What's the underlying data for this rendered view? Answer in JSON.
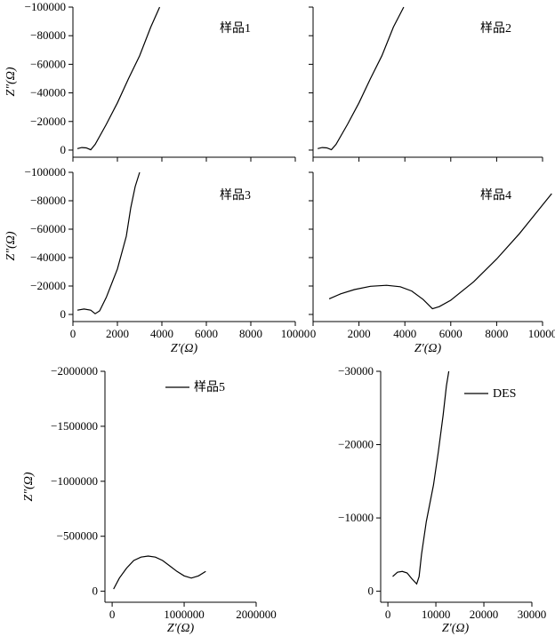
{
  "chart_data": [
    {
      "id": "p1",
      "type": "line",
      "annotation": "样品1",
      "xlim": [
        0,
        10000
      ],
      "ylim": [
        5000,
        -100000
      ],
      "x_ticks": [],
      "y_ticks": [
        {
          "v": -100000,
          "label": "−100000"
        },
        {
          "v": -80000,
          "label": "−80000"
        },
        {
          "v": -60000,
          "label": "−60000"
        },
        {
          "v": -40000,
          "label": "−40000"
        },
        {
          "v": -20000,
          "label": "−20000"
        },
        {
          "v": 0,
          "label": "0"
        }
      ],
      "xlabel": "",
      "ylabel": "Z″(Ω)",
      "series": [
        {
          "points": [
            [
              200,
              -1000
            ],
            [
              400,
              -1800
            ],
            [
              600,
              -1500
            ],
            [
              800,
              -200
            ],
            [
              1000,
              -4000
            ],
            [
              1500,
              -18000
            ],
            [
              2000,
              -33000
            ],
            [
              2500,
              -50000
            ],
            [
              3000,
              -66000
            ],
            [
              3500,
              -86000
            ],
            [
              3900,
              -100000
            ]
          ]
        }
      ]
    },
    {
      "id": "p2",
      "type": "line",
      "annotation": "样品2",
      "xlim": [
        0,
        10000
      ],
      "ylim": [
        5000,
        -100000
      ],
      "x_ticks": [],
      "y_ticks": [],
      "xlabel": "",
      "ylabel": "",
      "series": [
        {
          "points": [
            [
              200,
              -1000
            ],
            [
              400,
              -1800
            ],
            [
              600,
              -1500
            ],
            [
              800,
              -300
            ],
            [
              1000,
              -4000
            ],
            [
              1500,
              -18000
            ],
            [
              2000,
              -33000
            ],
            [
              2500,
              -50000
            ],
            [
              3000,
              -66000
            ],
            [
              3500,
              -86000
            ],
            [
              3950,
              -100000
            ]
          ]
        }
      ]
    },
    {
      "id": "p3",
      "type": "line",
      "annotation": "样品3",
      "xlim": [
        0,
        10000
      ],
      "ylim": [
        5000,
        -100000
      ],
      "x_ticks": [
        {
          "v": 0,
          "label": "0"
        },
        {
          "v": 2000,
          "label": "2000"
        },
        {
          "v": 4000,
          "label": "4000"
        },
        {
          "v": 6000,
          "label": "6000"
        },
        {
          "v": 8000,
          "label": "8000"
        },
        {
          "v": 10000,
          "label": "10000"
        }
      ],
      "y_ticks": [
        {
          "v": -100000,
          "label": "−100000"
        },
        {
          "v": -80000,
          "label": "−80000"
        },
        {
          "v": -60000,
          "label": "−60000"
        },
        {
          "v": -40000,
          "label": "−40000"
        },
        {
          "v": -20000,
          "label": "−20000"
        },
        {
          "v": 0,
          "label": "0"
        }
      ],
      "xlabel": "Z′(Ω)",
      "ylabel": "Z″(Ω)",
      "series": [
        {
          "points": [
            [
              200,
              -3000
            ],
            [
              500,
              -3800
            ],
            [
              800,
              -3000
            ],
            [
              1000,
              -500
            ],
            [
              1200,
              -2500
            ],
            [
              1500,
              -12000
            ],
            [
              2000,
              -32000
            ],
            [
              2400,
              -55000
            ],
            [
              2600,
              -75000
            ],
            [
              2800,
              -90000
            ],
            [
              3000,
              -100000
            ]
          ]
        }
      ]
    },
    {
      "id": "p4",
      "type": "line",
      "annotation": "样品4",
      "xlim": [
        0,
        10000
      ],
      "ylim": [
        5000,
        -100000
      ],
      "x_ticks": [
        {
          "v": 0,
          "label": "0"
        },
        {
          "v": 2000,
          "label": "2000"
        },
        {
          "v": 4000,
          "label": "4000"
        },
        {
          "v": 6000,
          "label": "6000"
        },
        {
          "v": 8000,
          "label": "8000"
        },
        {
          "v": 10000,
          "label": "10000"
        }
      ],
      "y_ticks": [],
      "xlabel": "Z′(Ω)",
      "ylabel": "",
      "series": [
        {
          "points": [
            [
              700,
              -11000
            ],
            [
              1200,
              -14500
            ],
            [
              1800,
              -17500
            ],
            [
              2500,
              -19800
            ],
            [
              3200,
              -20500
            ],
            [
              3800,
              -19500
            ],
            [
              4300,
              -16500
            ],
            [
              4800,
              -10500
            ],
            [
              5200,
              -4000
            ],
            [
              5500,
              -5500
            ],
            [
              6000,
              -10000
            ],
            [
              7000,
              -23000
            ],
            [
              8000,
              -39000
            ],
            [
              9000,
              -57000
            ],
            [
              10000,
              -77000
            ],
            [
              10400,
              -85000
            ]
          ]
        }
      ]
    },
    {
      "id": "p5",
      "type": "line",
      "annotation": "样品5",
      "xlim": [
        -100000,
        2000000
      ],
      "ylim": [
        100000,
        -2000000
      ],
      "x_ticks": [
        {
          "v": 0,
          "label": "0"
        },
        {
          "v": 1000000,
          "label": "1000000"
        },
        {
          "v": 2000000,
          "label": "2000000"
        }
      ],
      "y_ticks": [
        {
          "v": -2000000,
          "label": "−2000000"
        },
        {
          "v": -1500000,
          "label": "−1500000"
        },
        {
          "v": -1000000,
          "label": "−1000000"
        },
        {
          "v": -500000,
          "label": "−500000"
        },
        {
          "v": 0,
          "label": "0"
        }
      ],
      "xlabel": "Z′(Ω)",
      "ylabel": "Z″(Ω)",
      "series": [
        {
          "name": "样品5",
          "points": [
            [
              20000,
              -20000
            ],
            [
              100000,
              -120000
            ],
            [
              200000,
              -210000
            ],
            [
              300000,
              -280000
            ],
            [
              400000,
              -310000
            ],
            [
              500000,
              -320000
            ],
            [
              600000,
              -310000
            ],
            [
              700000,
              -280000
            ],
            [
              800000,
              -230000
            ],
            [
              900000,
              -180000
            ],
            [
              1000000,
              -140000
            ],
            [
              1100000,
              -120000
            ],
            [
              1200000,
              -140000
            ],
            [
              1300000,
              -180000
            ]
          ]
        }
      ]
    },
    {
      "id": "p6",
      "type": "line",
      "annotation": "",
      "xlim": [
        -1500,
        30000
      ],
      "ylim": [
        1500,
        -30000
      ],
      "x_ticks": [
        {
          "v": 0,
          "label": "0"
        },
        {
          "v": 10000,
          "label": "10000"
        },
        {
          "v": 20000,
          "label": "20000"
        },
        {
          "v": 30000,
          "label": "30000"
        }
      ],
      "y_ticks": [
        {
          "v": -30000,
          "label": "−30000"
        },
        {
          "v": -20000,
          "label": "−20000"
        },
        {
          "v": -10000,
          "label": "−10000"
        },
        {
          "v": 0,
          "label": "0"
        }
      ],
      "xlabel": "Z′(Ω)",
      "ylabel": "",
      "series": [
        {
          "name": "DES",
          "points": [
            [
              1000,
              -2000
            ],
            [
              2000,
              -2600
            ],
            [
              3000,
              -2700
            ],
            [
              4000,
              -2500
            ],
            [
              5000,
              -1700
            ],
            [
              6000,
              -1000
            ],
            [
              6500,
              -2000
            ],
            [
              7000,
              -5000
            ],
            [
              8000,
              -9500
            ],
            [
              9500,
              -14500
            ],
            [
              10500,
              -19000
            ],
            [
              11500,
              -24000
            ],
            [
              12200,
              -28000
            ],
            [
              12700,
              -30000
            ]
          ]
        }
      ]
    }
  ]
}
